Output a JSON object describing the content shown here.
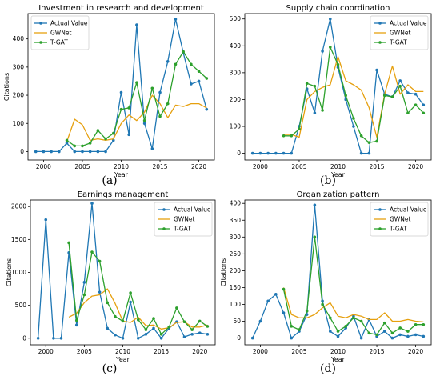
{
  "chart_data": [
    {
      "type": "line",
      "panel_letter": "(a)",
      "title": "Investment in research and development",
      "xlabel": "Year",
      "ylabel": "Citations",
      "xlim": [
        1998,
        2022
      ],
      "ylim": [
        -30,
        490
      ],
      "xticks": [
        2000,
        2005,
        2010,
        2015,
        2020
      ],
      "yticks": [
        0,
        100,
        200,
        300,
        400
      ],
      "legend_position": "top-left",
      "series": [
        {
          "name": "Actual Value",
          "color": "#1f77b4",
          "marker": "dot",
          "x": [
            1999,
            2000,
            2001,
            2002,
            2003,
            2004,
            2005,
            2006,
            2007,
            2008,
            2009,
            2010,
            2011,
            2012,
            2013,
            2014,
            2015,
            2016,
            2017,
            2018,
            2019,
            2020,
            2021
          ],
          "y": [
            0,
            0,
            0,
            0,
            30,
            0,
            0,
            0,
            0,
            0,
            40,
            210,
            60,
            450,
            100,
            10,
            210,
            320,
            470,
            350,
            240,
            250,
            150
          ]
        },
        {
          "name": "GWNet",
          "color": "#e6a00f",
          "marker": "none",
          "x": [
            2003,
            2004,
            2005,
            2006,
            2007,
            2008,
            2009,
            2010,
            2011,
            2012,
            2013,
            2014,
            2015,
            2016,
            2017,
            2018,
            2019,
            2020,
            2021
          ],
          "y": [
            35,
            115,
            95,
            40,
            45,
            40,
            45,
            100,
            130,
            110,
            140,
            200,
            170,
            120,
            165,
            160,
            170,
            170,
            155
          ]
        },
        {
          "name": "T-GAT",
          "color": "#2ca02c",
          "marker": "dot",
          "x": [
            2003,
            2004,
            2005,
            2006,
            2007,
            2008,
            2009,
            2010,
            2011,
            2012,
            2013,
            2014,
            2015,
            2016,
            2017,
            2018,
            2019,
            2020,
            2021
          ],
          "y": [
            40,
            20,
            20,
            30,
            75,
            45,
            65,
            150,
            155,
            245,
            110,
            225,
            125,
            170,
            310,
            355,
            310,
            285,
            260
          ]
        }
      ]
    },
    {
      "type": "line",
      "panel_letter": "(b)",
      "title": "Supply chain coordination",
      "xlabel": "Year",
      "ylabel": "",
      "xlim": [
        1998,
        2022
      ],
      "ylim": [
        -25,
        520
      ],
      "xticks": [
        2000,
        2005,
        2010,
        2015,
        2020
      ],
      "yticks": [
        0,
        100,
        200,
        300,
        400,
        500
      ],
      "legend_position": "top-right",
      "series": [
        {
          "name": "Actual Value",
          "color": "#1f77b4",
          "marker": "dot",
          "x": [
            1999,
            2000,
            2001,
            2002,
            2003,
            2004,
            2005,
            2006,
            2007,
            2008,
            2009,
            2010,
            2011,
            2012,
            2013,
            2014,
            2015,
            2016,
            2017,
            2018,
            2019,
            2020,
            2021
          ],
          "y": [
            0,
            0,
            0,
            0,
            0,
            0,
            100,
            240,
            150,
            380,
            500,
            320,
            200,
            100,
            0,
            0,
            310,
            220,
            210,
            270,
            225,
            220,
            180
          ]
        },
        {
          "name": "GWNet",
          "color": "#e6a00f",
          "marker": "none",
          "x": [
            2003,
            2004,
            2005,
            2006,
            2007,
            2008,
            2009,
            2010,
            2011,
            2012,
            2013,
            2014,
            2015,
            2016,
            2017,
            2018,
            2019,
            2020,
            2021
          ],
          "y": [
            70,
            70,
            60,
            200,
            230,
            245,
            255,
            360,
            270,
            255,
            235,
            170,
            60,
            220,
            325,
            220,
            255,
            230,
            230
          ]
        },
        {
          "name": "T-GAT",
          "color": "#2ca02c",
          "marker": "dot",
          "x": [
            2003,
            2004,
            2005,
            2006,
            2007,
            2008,
            2009,
            2010,
            2011,
            2012,
            2013,
            2014,
            2015,
            2016,
            2017,
            2018,
            2019,
            2020,
            2021
          ],
          "y": [
            65,
            65,
            90,
            260,
            250,
            160,
            395,
            330,
            215,
            130,
            65,
            40,
            45,
            215,
            210,
            250,
            150,
            180,
            150
          ]
        }
      ]
    },
    {
      "type": "line",
      "panel_letter": "(c)",
      "title": "Earnings management",
      "xlabel": "Year",
      "ylabel": "Citations",
      "xlim": [
        1998,
        2022
      ],
      "ylim": [
        -100,
        2100
      ],
      "xticks": [
        2000,
        2005,
        2010,
        2015,
        2020
      ],
      "yticks": [
        0,
        500,
        1000,
        1500,
        2000
      ],
      "legend_position": "top-right",
      "series": [
        {
          "name": "Actual Value",
          "color": "#1f77b4",
          "marker": "dot",
          "x": [
            1999,
            2000,
            2001,
            2002,
            2003,
            2004,
            2005,
            2006,
            2007,
            2008,
            2009,
            2010,
            2011,
            2012,
            2013,
            2014,
            2015,
            2016,
            2017,
            2018,
            2019,
            2020,
            2021
          ],
          "y": [
            0,
            1800,
            0,
            0,
            1300,
            200,
            850,
            2050,
            700,
            150,
            50,
            0,
            550,
            0,
            60,
            150,
            0,
            150,
            250,
            20,
            60,
            80,
            60
          ]
        },
        {
          "name": "GWNet",
          "color": "#e6a00f",
          "marker": "none",
          "x": [
            2003,
            2004,
            2005,
            2006,
            2007,
            2008,
            2009,
            2010,
            2011,
            2012,
            2013,
            2014,
            2015,
            2016,
            2017,
            2018,
            2019,
            2020,
            2021
          ],
          "y": [
            320,
            380,
            540,
            640,
            660,
            750,
            530,
            260,
            240,
            320,
            190,
            200,
            140,
            160,
            240,
            250,
            170,
            170,
            200
          ]
        },
        {
          "name": "T-GAT",
          "color": "#2ca02c",
          "marker": "dot",
          "x": [
            2003,
            2004,
            2005,
            2006,
            2007,
            2008,
            2009,
            2010,
            2011,
            2012,
            2013,
            2014,
            2015,
            2016,
            2017,
            2018,
            2019,
            2020,
            2021
          ],
          "y": [
            1450,
            270,
            660,
            1310,
            1170,
            540,
            330,
            260,
            690,
            280,
            130,
            300,
            60,
            170,
            460,
            250,
            130,
            260,
            180
          ]
        }
      ]
    },
    {
      "type": "line",
      "panel_letter": "(d)",
      "title": "Organization pattern",
      "xlabel": "Year",
      "ylabel": "Citations",
      "xlim": [
        1998,
        2022
      ],
      "ylim": [
        -20,
        410
      ],
      "xticks": [
        2000,
        2005,
        2010,
        2015,
        2020
      ],
      "yticks": [
        0,
        50,
        100,
        150,
        200,
        250,
        300,
        350,
        400
      ],
      "legend_position": "top-right",
      "series": [
        {
          "name": "Actual Value",
          "color": "#1f77b4",
          "marker": "dot",
          "x": [
            1999,
            2000,
            2001,
            2002,
            2003,
            2004,
            2005,
            2006,
            2007,
            2008,
            2009,
            2010,
            2011,
            2012,
            2013,
            2014,
            2015,
            2016,
            2017,
            2018,
            2019,
            2020,
            2021
          ],
          "y": [
            0,
            50,
            110,
            130,
            75,
            0,
            20,
            70,
            395,
            110,
            20,
            5,
            30,
            65,
            0,
            55,
            5,
            20,
            0,
            10,
            5,
            10,
            5
          ]
        },
        {
          "name": "GWNet",
          "color": "#e6a00f",
          "marker": "none",
          "x": [
            2003,
            2004,
            2005,
            2006,
            2007,
            2008,
            2009,
            2010,
            2011,
            2012,
            2013,
            2014,
            2015,
            2016,
            2017,
            2018,
            2019,
            2020,
            2021
          ],
          "y": [
            150,
            70,
            60,
            60,
            70,
            90,
            105,
            65,
            60,
            70,
            65,
            55,
            55,
            75,
            50,
            50,
            55,
            50,
            48
          ]
        },
        {
          "name": "T-GAT",
          "color": "#2ca02c",
          "marker": "dot",
          "x": [
            2003,
            2004,
            2005,
            2006,
            2007,
            2008,
            2009,
            2010,
            2011,
            2012,
            2013,
            2014,
            2015,
            2016,
            2017,
            2018,
            2019,
            2020,
            2021
          ],
          "y": [
            145,
            35,
            25,
            80,
            300,
            100,
            60,
            20,
            35,
            60,
            50,
            15,
            10,
            45,
            15,
            30,
            20,
            40,
            40
          ]
        }
      ]
    }
  ]
}
